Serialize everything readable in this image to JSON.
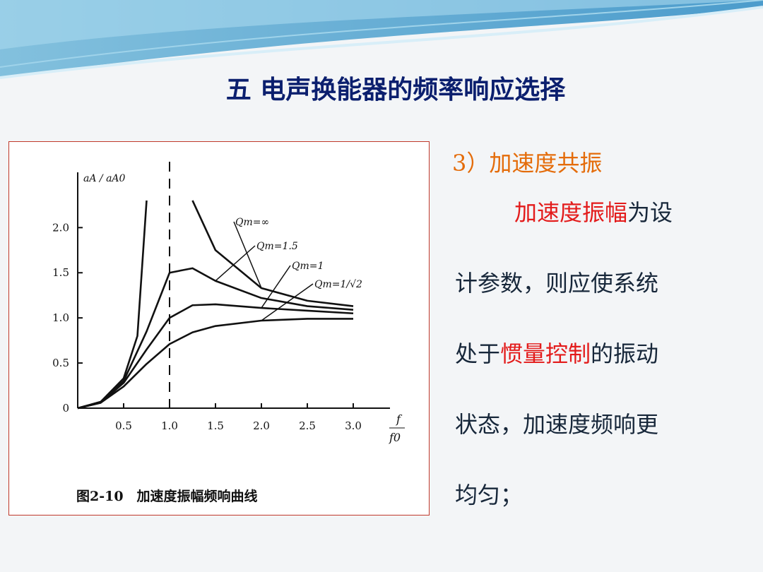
{
  "title": "五 电声换能器的频率响应选择",
  "figure": {
    "chart_data": {
      "type": "line",
      "y_label": "aA / aA0",
      "x_label_num": "f",
      "x_label_den": "f0",
      "xlim": [
        0,
        3.4
      ],
      "ylim": [
        0,
        2.55
      ],
      "xticks": [
        0.5,
        {
          "value": 1,
          "label": "1.0"
        },
        1.5,
        {
          "value": 2,
          "label": "2.0"
        },
        2.5,
        {
          "value": 3,
          "label": "3.0"
        }
      ],
      "yticks": [
        0,
        0.5,
        {
          "value": 1,
          "label": "1.0"
        },
        1.5,
        {
          "value": 2,
          "label": "2.0"
        }
      ],
      "color": "#111111",
      "series": [
        {
          "name": "Qm=∞",
          "x": [
            0,
            0.25,
            0.5,
            0.65,
            0.75,
            null,
            1.25,
            1.5,
            2,
            2.5,
            3
          ],
          "values": [
            0,
            0.07,
            0.33,
            0.8,
            2.3,
            null,
            2.3,
            1.75,
            1.33,
            1.19,
            1.13
          ]
        },
        {
          "name": "Qm=1.5",
          "x": [
            0,
            0.25,
            0.5,
            0.75,
            1,
            1.25,
            1.5,
            2,
            2.5,
            3
          ],
          "values": [
            0,
            0.07,
            0.3,
            0.85,
            1.5,
            1.55,
            1.41,
            1.22,
            1.13,
            1.09
          ]
        },
        {
          "name": "Qm=1",
          "x": [
            0,
            0.25,
            0.5,
            0.75,
            1,
            1.25,
            1.5,
            2,
            2.5,
            3
          ],
          "values": [
            0,
            0.06,
            0.28,
            0.65,
            1.0,
            1.14,
            1.15,
            1.11,
            1.08,
            1.05
          ]
        },
        {
          "name": "Qm=1/√2",
          "x": [
            0,
            0.25,
            0.5,
            0.75,
            1,
            1.25,
            1.5,
            2,
            2.5,
            3
          ],
          "values": [
            0,
            0.06,
            0.24,
            0.49,
            0.71,
            0.84,
            0.91,
            0.97,
            0.99,
            0.99
          ]
        }
      ]
    },
    "caption": "图2-10　加速度振幅频响曲线"
  },
  "text": {
    "heading": "3）加速度共振",
    "lines": [
      [
        {
          "t": "加速度振幅",
          "red": true
        },
        {
          "t": "为设"
        }
      ],
      [
        {
          "t": "计参数，则应使系统"
        }
      ],
      [
        {
          "t": "处于"
        },
        {
          "t": "惯量控制",
          "red": true
        },
        {
          "t": "的振动"
        }
      ],
      [
        {
          "t": "状态，加速度频响更"
        }
      ],
      [
        {
          "t": "均匀；"
        }
      ]
    ]
  }
}
